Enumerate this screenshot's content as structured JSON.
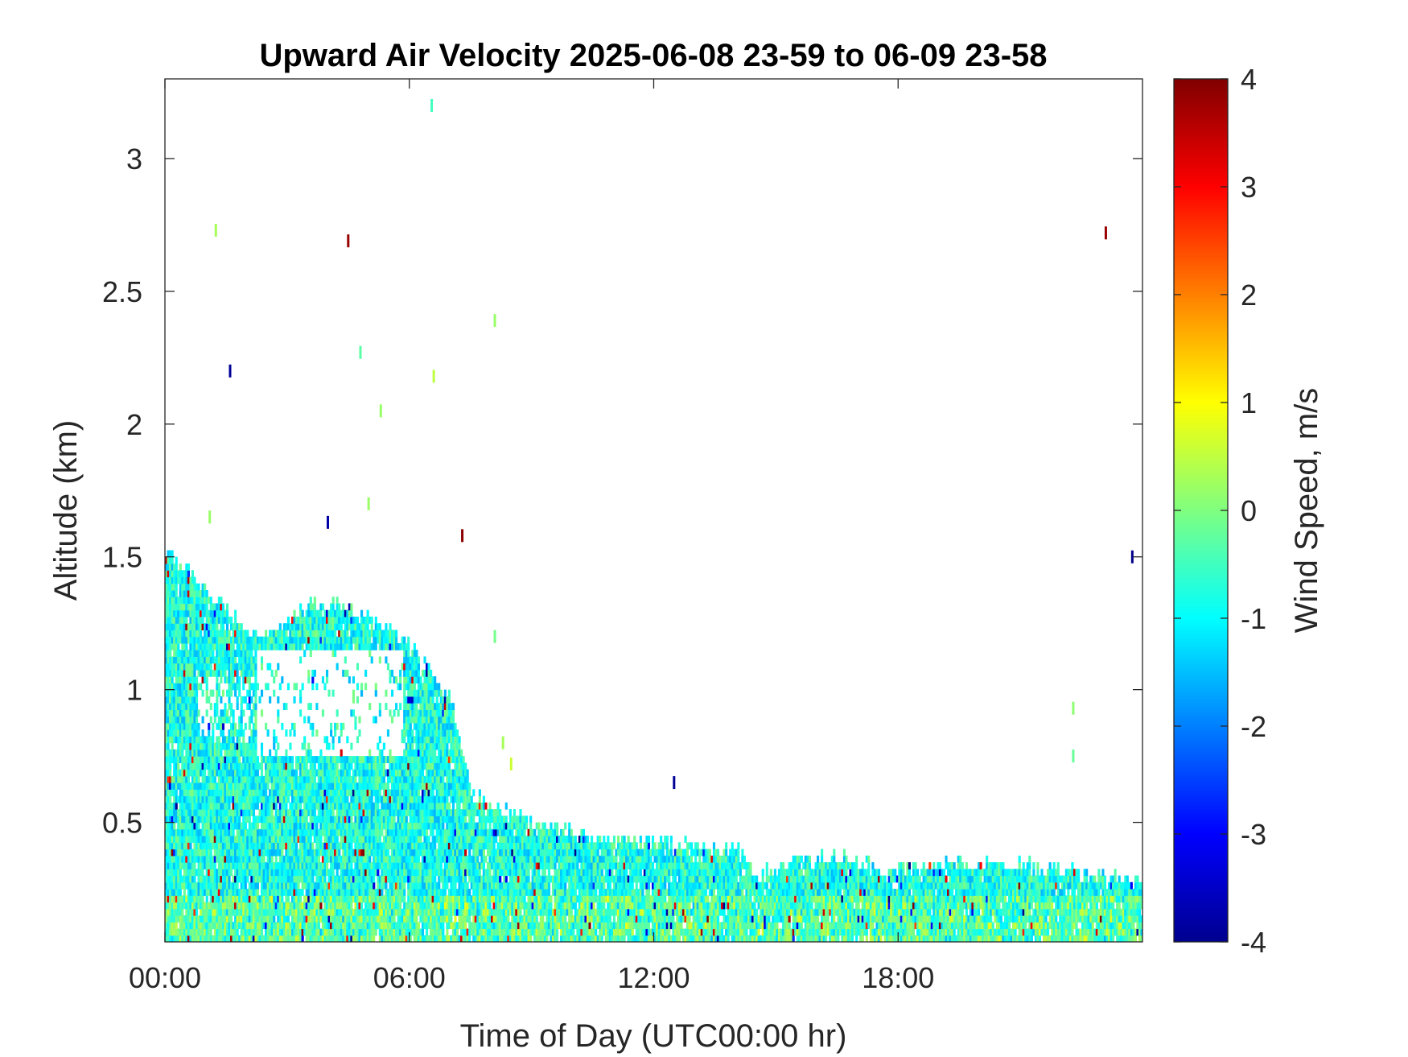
{
  "chart_data": {
    "type": "heatmap",
    "title": "Upward Air Velocity 2025-06-08 23-59 to 06-09 23-58",
    "xlabel": "Time of Day (UTC00:00 hr)",
    "ylabel": "Altitude (km)",
    "xlim": [
      0,
      24
    ],
    "ylim": [
      0.05,
      3.3
    ],
    "x_ticks": [
      0,
      6,
      12,
      18
    ],
    "x_tick_labels": [
      "00:00",
      "06:00",
      "12:00",
      "18:00"
    ],
    "y_ticks": [
      0.5,
      1,
      1.5,
      2,
      2.5,
      3
    ],
    "y_tick_labels": [
      "0.5",
      "1",
      "1.5",
      "2",
      "2.5",
      "3"
    ],
    "colorbar": {
      "label": "Wind Speed, m/s",
      "range": [
        -4,
        4
      ],
      "ticks": [
        -4,
        -3,
        -2,
        -1,
        0,
        1,
        2,
        3,
        4
      ],
      "tick_labels": [
        "-4",
        "-3",
        "-2",
        "-1",
        "0",
        "1",
        "2",
        "3",
        "4"
      ],
      "colormap": "jet"
    },
    "data_ceiling_km": {
      "hour": [
        0,
        0.5,
        1,
        1.5,
        2,
        2.5,
        3,
        3.5,
        4,
        4.5,
        5,
        5.5,
        6,
        6.5,
        7,
        7.5,
        8,
        8.5,
        9,
        9.5,
        10,
        10.5,
        11,
        11.5,
        12,
        12.5,
        13,
        13.5,
        14,
        14.5,
        15,
        15.5,
        16,
        16.5,
        17,
        17.5,
        18,
        18.5,
        19,
        19.5,
        20,
        20.5,
        21,
        21.5,
        22,
        22.5,
        23,
        23.5,
        24
      ],
      "altitude": [
        1.5,
        1.45,
        1.35,
        1.3,
        1.2,
        1.2,
        1.25,
        1.3,
        1.3,
        1.3,
        1.25,
        1.22,
        1.15,
        1.05,
        0.95,
        0.6,
        0.55,
        0.52,
        0.48,
        0.47,
        0.45,
        0.43,
        0.42,
        0.42,
        0.42,
        0.4,
        0.4,
        0.4,
        0.4,
        0.28,
        0.32,
        0.35,
        0.35,
        0.35,
        0.35,
        0.3,
        0.3,
        0.32,
        0.33,
        0.34,
        0.33,
        0.33,
        0.33,
        0.32,
        0.32,
        0.3,
        0.29,
        0.27,
        0.25
      ]
    },
    "isolated_returns": [
      {
        "hour": 6.55,
        "altitude": 3.2,
        "value": -0.5
      },
      {
        "hour": 1.25,
        "altitude": 2.73,
        "value": 0.3
      },
      {
        "hour": 4.5,
        "altitude": 2.69,
        "value": 3.8
      },
      {
        "hour": 23.1,
        "altitude": 2.72,
        "value": 3.8
      },
      {
        "hour": 8.1,
        "altitude": 2.39,
        "value": 0.2
      },
      {
        "hour": 1.6,
        "altitude": 2.2,
        "value": -3.8
      },
      {
        "hour": 4.8,
        "altitude": 2.27,
        "value": -0.3
      },
      {
        "hour": 6.6,
        "altitude": 2.18,
        "value": 0.5
      },
      {
        "hour": 5.3,
        "altitude": 2.05,
        "value": 0.2
      },
      {
        "hour": 4.0,
        "altitude": 1.63,
        "value": -3.7
      },
      {
        "hour": 7.3,
        "altitude": 1.58,
        "value": 3.9
      },
      {
        "hour": 23.75,
        "altitude": 1.5,
        "value": -3.9
      },
      {
        "hour": 12.5,
        "altitude": 0.65,
        "value": -3.8
      },
      {
        "hour": 22.3,
        "altitude": 0.93,
        "value": 0.1
      },
      {
        "hour": 22.3,
        "altitude": 0.75,
        "value": -0.2
      },
      {
        "hour": 8.3,
        "altitude": 0.8,
        "value": 0.3
      },
      {
        "hour": 8.5,
        "altitude": 0.72,
        "value": 0.6
      },
      {
        "hour": 8.1,
        "altitude": 1.2,
        "value": -0.1
      },
      {
        "hour": 5.0,
        "altitude": 1.7,
        "value": 0.2
      },
      {
        "hour": 1.1,
        "altitude": 1.65,
        "value": 0.2
      }
    ],
    "grid": false
  }
}
